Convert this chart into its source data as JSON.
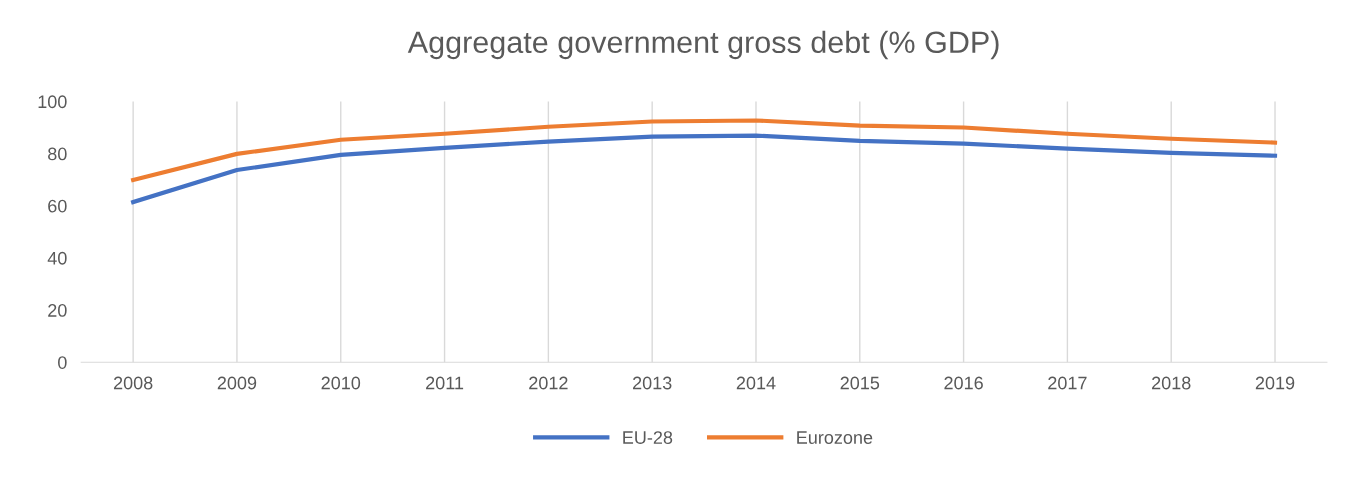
{
  "chart_data": {
    "type": "line",
    "title": "Aggregate government gross debt (% GDP)",
    "categories": [
      "2008",
      "2009",
      "2010",
      "2011",
      "2012",
      "2013",
      "2014",
      "2015",
      "2016",
      "2017",
      "2018",
      "2019"
    ],
    "series": [
      {
        "name": "EU-28",
        "color": "#4472c4",
        "values": [
          61.4,
          73.7,
          79.5,
          82.2,
          84.6,
          86.5,
          86.9,
          84.9,
          83.8,
          81.9,
          80.3,
          79.2
        ]
      },
      {
        "name": "Eurozone",
        "color": "#ed7d31",
        "values": [
          69.9,
          79.9,
          85.3,
          87.6,
          90.3,
          92.3,
          92.7,
          90.7,
          90.0,
          87.6,
          85.7,
          84.2
        ]
      }
    ],
    "ylim": [
      0,
      100
    ],
    "yticks": [
      0,
      20,
      40,
      60,
      80,
      100
    ],
    "grid": "x",
    "legend": "bottom",
    "marker": "none",
    "line_style": "solid"
  }
}
